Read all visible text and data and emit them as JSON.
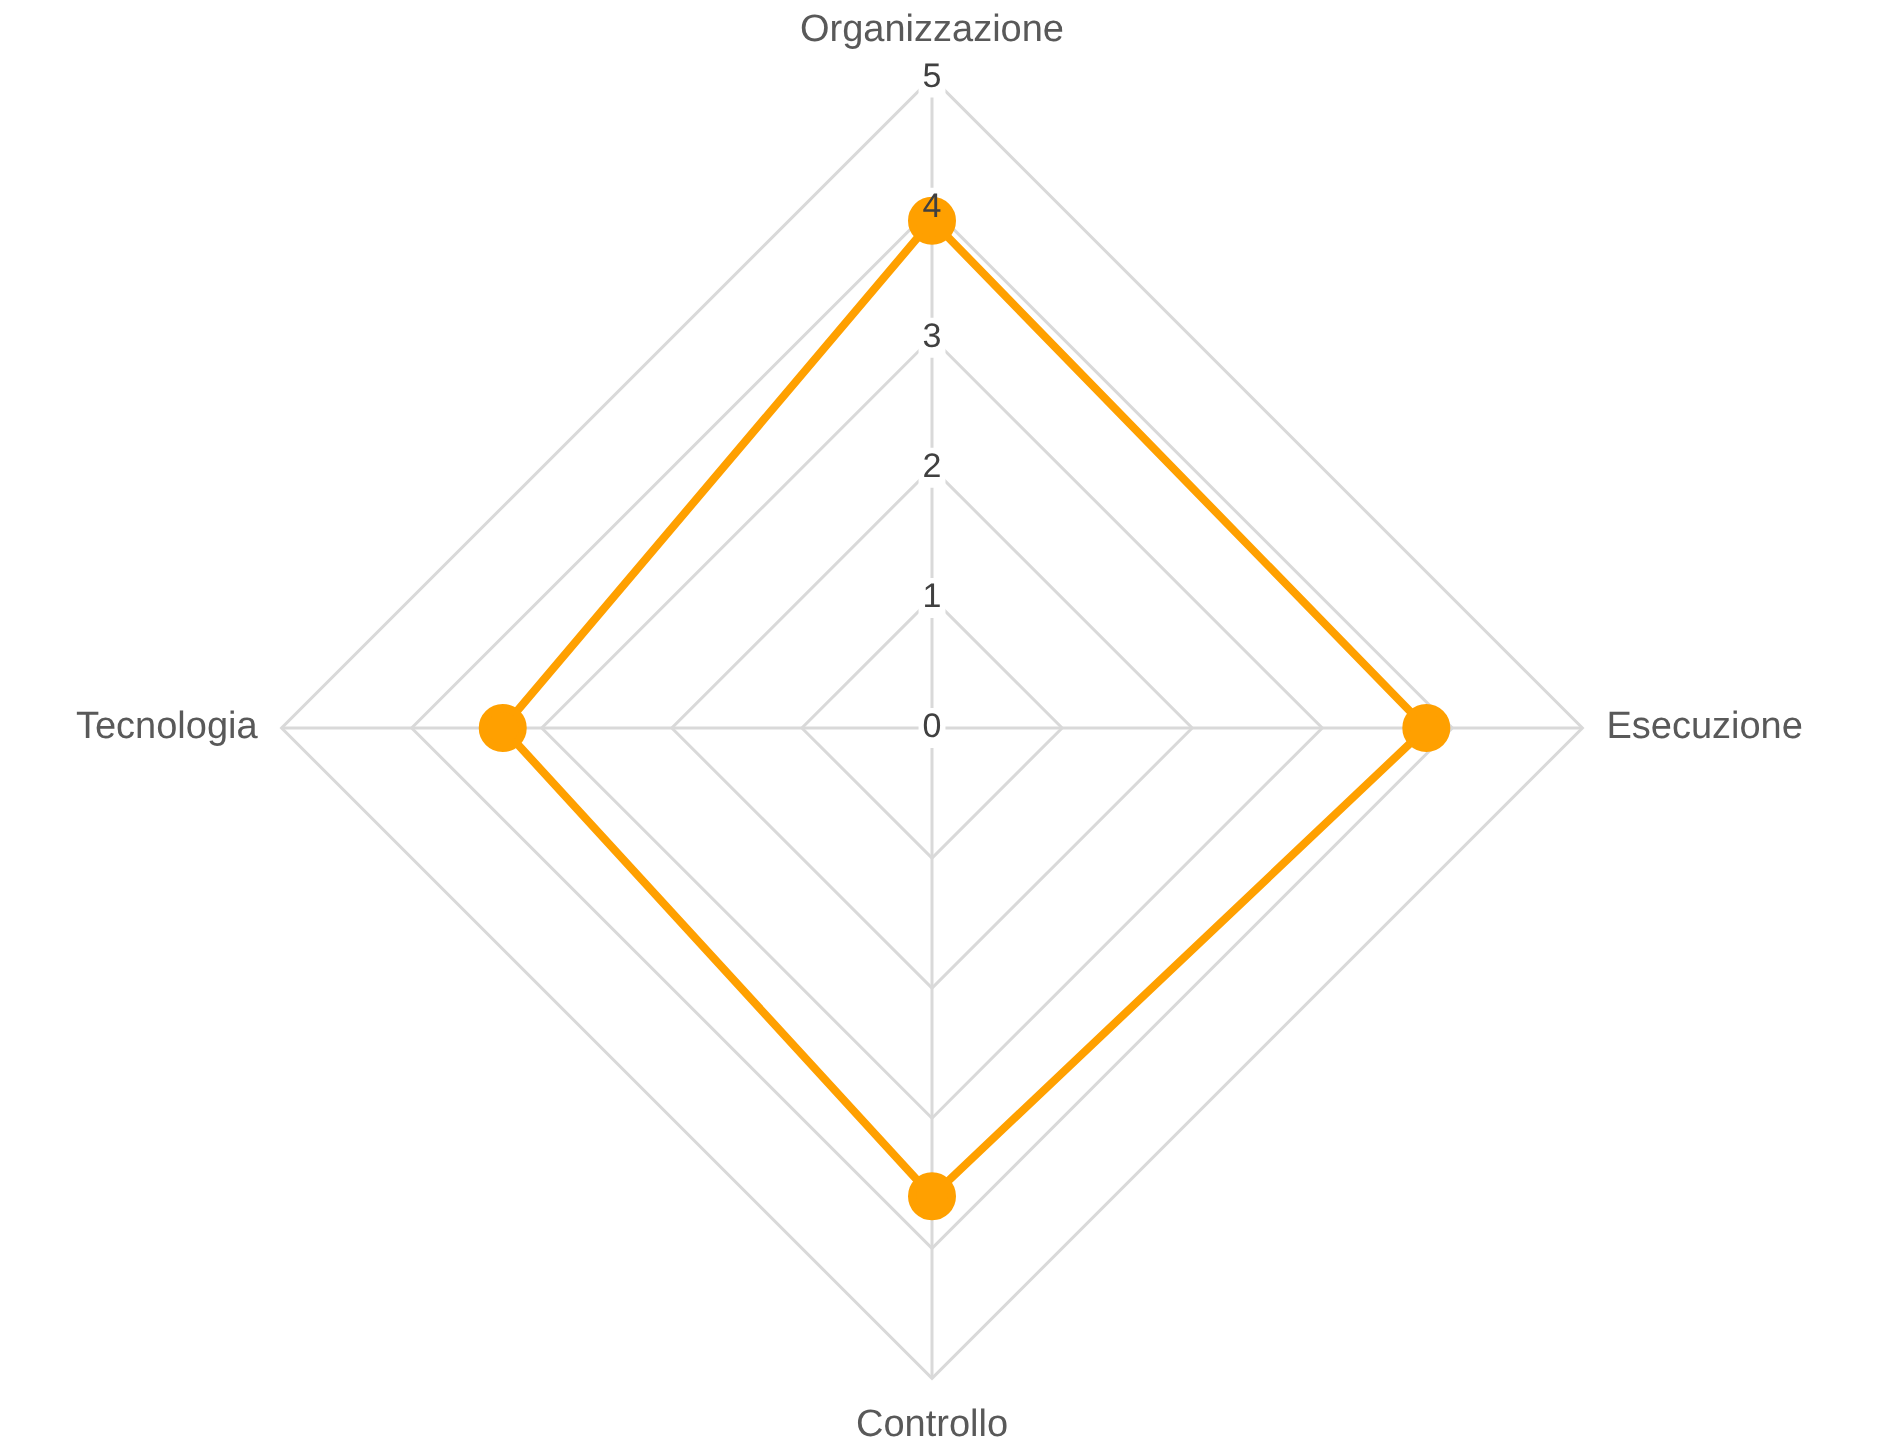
{
  "chart_data": {
    "type": "radar",
    "categories": [
      "Organizzazione",
      "Esecuzione",
      "Controllo",
      "Tecnologia"
    ],
    "series": [
      {
        "color": "#ffa000",
        "values": [
          3.9,
          3.8,
          3.6,
          3.3
        ]
      }
    ],
    "ylim": [
      0,
      5
    ],
    "yticks": [
      0,
      1,
      2,
      3,
      4,
      5
    ],
    "grid": true,
    "legend": false,
    "marker": "circle",
    "line_style": "solid"
  }
}
